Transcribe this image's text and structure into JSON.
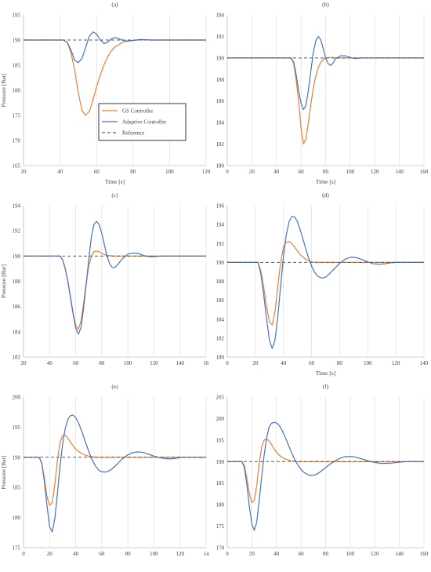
{
  "colors": {
    "gs": "#ED7D31",
    "adaptive": "#4472C4",
    "reference": "#595959",
    "grid": "#D9D9D9",
    "axis": "#BFBFBF"
  },
  "legend": {
    "gs": "GS Controller",
    "adaptive": "Adaptive Controller",
    "reference": "Reference"
  },
  "chart_data": [
    {
      "type": "line",
      "title": "(a)",
      "xlabel": "Time [s]",
      "ylabel": "Pressure [Bar]",
      "xlim": [
        20,
        120
      ],
      "ylim": [
        165,
        195
      ],
      "xticks": [
        "20",
        "40",
        "60",
        "80",
        "100",
        "120"
      ],
      "yticks": [
        "165",
        "170",
        "175",
        "180",
        "185",
        "190",
        "195"
      ],
      "grid": "vertical",
      "legend": "inside-lower-center",
      "series": [
        {
          "name": "GS Controller",
          "key": "gs",
          "x": [
            20,
            42,
            44,
            46,
            48,
            50,
            52,
            54,
            56,
            58,
            60,
            62,
            64,
            66,
            68,
            70,
            74,
            78,
            82,
            86,
            90,
            100,
            110,
            120
          ],
          "y": [
            190,
            190,
            189.5,
            187.5,
            184,
            179.5,
            176,
            175,
            175.8,
            178,
            180.7,
            183,
            185,
            186.6,
            187.8,
            188.6,
            189.5,
            189.85,
            190,
            190.05,
            190,
            190,
            190,
            190
          ]
        },
        {
          "name": "Adaptive Controller",
          "key": "adaptive",
          "x": [
            20,
            42,
            44,
            46,
            48,
            50,
            52,
            54,
            56,
            58,
            60,
            62,
            64,
            66,
            68,
            70,
            72,
            74,
            76,
            80,
            84,
            90,
            100,
            120
          ],
          "y": [
            190,
            190,
            189.5,
            188,
            186,
            185.5,
            186.3,
            188.5,
            190.7,
            191.6,
            191.2,
            190,
            189.3,
            189.5,
            190.2,
            190.5,
            190.3,
            190,
            189.8,
            189.9,
            190.1,
            190,
            190,
            190
          ]
        },
        {
          "name": "Reference",
          "key": "reference",
          "x": [
            20,
            120
          ],
          "y": [
            190,
            190
          ]
        }
      ]
    },
    {
      "type": "line",
      "title": "(b)",
      "xlabel": "Time [s]",
      "ylabel": "",
      "xlim": [
        0,
        160
      ],
      "ylim": [
        180,
        194
      ],
      "xticks": [
        "0",
        "20",
        "40",
        "60",
        "80",
        "100",
        "120",
        "140",
        "160"
      ],
      "yticks": [
        "180",
        "182",
        "184",
        "186",
        "188",
        "190",
        "192",
        "194"
      ],
      "grid": "vertical",
      "legend": "none",
      "series": [
        {
          "name": "GS Controller",
          "key": "gs",
          "x": [
            0,
            52,
            54,
            56,
            58,
            60,
            62,
            64,
            66,
            68,
            70,
            72,
            74,
            76,
            78,
            80,
            84,
            90,
            100,
            110,
            160
          ],
          "y": [
            190,
            190,
            189.5,
            188,
            186,
            183.5,
            182,
            182.5,
            184,
            185.7,
            187.2,
            188.3,
            189.1,
            189.6,
            189.85,
            190,
            190.05,
            190,
            190,
            190,
            190
          ]
        },
        {
          "name": "Adaptive Controller",
          "key": "adaptive",
          "x": [
            0,
            52,
            54,
            56,
            58,
            60,
            62,
            64,
            66,
            68,
            70,
            72,
            74,
            76,
            78,
            80,
            82,
            84,
            86,
            88,
            92,
            96,
            100,
            104,
            110,
            120,
            160
          ],
          "y": [
            190,
            190,
            189.6,
            188.5,
            187,
            185.8,
            185.2,
            185.6,
            187,
            188.8,
            190.5,
            191.6,
            192,
            191.7,
            190.9,
            190,
            189.5,
            189.3,
            189.5,
            189.9,
            190.2,
            190.2,
            190.05,
            189.95,
            190,
            190,
            190
          ]
        },
        {
          "name": "Reference",
          "key": "reference",
          "x": [
            0,
            160
          ],
          "y": [
            190,
            190
          ]
        }
      ]
    },
    {
      "type": "line",
      "title": "(c)",
      "xlabel": "",
      "ylabel": "Pressure [Bar]",
      "xlim": [
        20,
        160
      ],
      "ylim": [
        182,
        194
      ],
      "xticks": [
        "20",
        "40",
        "60",
        "80",
        "100",
        "120",
        "140",
        "16"
      ],
      "yticks": [
        "182",
        "184",
        "186",
        "188",
        "190",
        "192",
        "194"
      ],
      "grid": "vertical",
      "legend": "none",
      "series": [
        {
          "name": "GS Controller",
          "key": "gs",
          "x": [
            20,
            48,
            50,
            52,
            54,
            56,
            58,
            60,
            62,
            64,
            66,
            68,
            70,
            72,
            74,
            76,
            78,
            80,
            84,
            90,
            100,
            160
          ],
          "y": [
            190,
            190,
            189.7,
            189,
            188,
            186.8,
            185.5,
            184.5,
            184.2,
            184.8,
            186.2,
            187.8,
            189.2,
            190,
            190.35,
            190.4,
            190.35,
            190.2,
            190.05,
            190,
            190,
            190
          ]
        },
        {
          "name": "Adaptive Controller",
          "key": "adaptive",
          "x": [
            20,
            48,
            50,
            52,
            54,
            56,
            58,
            60,
            62,
            64,
            66,
            68,
            70,
            72,
            74,
            76,
            78,
            80,
            82,
            84,
            86,
            88,
            90,
            92,
            96,
            100,
            104,
            108,
            112,
            116,
            120,
            125,
            130,
            140,
            160
          ],
          "y": [
            190,
            190,
            189.7,
            189,
            188,
            186.7,
            185.4,
            184.3,
            183.8,
            184.3,
            185.8,
            187.7,
            189.7,
            191.5,
            192.5,
            192.75,
            192.5,
            191.8,
            190.9,
            190,
            189.4,
            189.1,
            189.1,
            189.3,
            189.8,
            190.15,
            190.25,
            190.2,
            190.05,
            189.95,
            189.95,
            190,
            190,
            190,
            190
          ]
        },
        {
          "name": "Reference",
          "key": "reference",
          "x": [
            20,
            160
          ],
          "y": [
            190,
            190
          ]
        }
      ]
    },
    {
      "type": "line",
      "title": "(d)",
      "xlabel": "Time [s]",
      "ylabel": "",
      "xlim": [
        0,
        140
      ],
      "ylim": [
        180,
        196
      ],
      "xticks": [
        "0",
        "20",
        "40",
        "60",
        "80",
        "100",
        "120",
        "140"
      ],
      "yticks": [
        "180",
        "182",
        "184",
        "186",
        "188",
        "190",
        "192",
        "194",
        "196"
      ],
      "grid": "vertical",
      "legend": "none",
      "series": [
        {
          "name": "GS Controller",
          "key": "gs",
          "x": [
            0,
            22,
            24,
            26,
            28,
            30,
            32,
            34,
            36,
            38,
            40,
            42,
            44,
            46,
            48,
            50,
            52,
            56,
            60,
            64,
            70,
            140
          ],
          "y": [
            190,
            190,
            189,
            187.3,
            185.3,
            183.7,
            183.4,
            184.8,
            187.5,
            190,
            191.6,
            192.15,
            192.2,
            192,
            191.6,
            191.2,
            190.8,
            190.3,
            190.05,
            190,
            190,
            190
          ]
        },
        {
          "name": "Adaptive Controller",
          "key": "adaptive",
          "x": [
            0,
            22,
            24,
            26,
            28,
            30,
            32,
            34,
            36,
            38,
            40,
            42,
            44,
            46,
            48,
            50,
            52,
            54,
            56,
            58,
            60,
            62,
            64,
            66,
            68,
            70,
            72,
            76,
            80,
            84,
            88,
            92,
            96,
            100,
            104,
            108,
            112,
            116,
            120,
            124,
            140
          ],
          "y": [
            190,
            190,
            188.7,
            186.5,
            184,
            181.8,
            180.9,
            181.8,
            184.3,
            187.5,
            190.6,
            192.9,
            194.3,
            194.85,
            194.8,
            194.3,
            193.4,
            192.4,
            191.4,
            190.4,
            189.6,
            189,
            188.6,
            188.4,
            188.35,
            188.45,
            188.7,
            189.3,
            189.9,
            190.35,
            190.55,
            190.5,
            190.3,
            190.05,
            189.85,
            189.8,
            189.85,
            189.95,
            190,
            190,
            190
          ]
        },
        {
          "name": "Reference",
          "key": "reference",
          "x": [
            0,
            140
          ],
          "y": [
            190,
            190
          ]
        }
      ]
    },
    {
      "type": "line",
      "title": "(e)",
      "xlabel": "",
      "ylabel": "Pressure [Bar]",
      "xlim": [
        0,
        140
      ],
      "ylim": [
        175,
        200
      ],
      "xticks": [
        "0",
        "20",
        "40",
        "60",
        "80",
        "100",
        "120",
        "14"
      ],
      "yticks": [
        "175",
        "180",
        "185",
        "190",
        "195",
        "200"
      ],
      "grid": "vertical",
      "legend": "none",
      "series": [
        {
          "name": "GS Controller",
          "key": "gs",
          "x": [
            0,
            12,
            14,
            16,
            18,
            20,
            22,
            24,
            26,
            28,
            30,
            32,
            34,
            36,
            38,
            40,
            42,
            44,
            48,
            52,
            56,
            60,
            140
          ],
          "y": [
            190,
            190,
            189,
            186.5,
            183.5,
            182,
            182.5,
            185.5,
            189.5,
            192.5,
            193.6,
            193.7,
            193.2,
            192.5,
            191.9,
            191.4,
            191,
            190.7,
            190.3,
            190.1,
            190,
            190,
            190
          ]
        },
        {
          "name": "Adaptive Controller",
          "key": "adaptive",
          "x": [
            0,
            12,
            14,
            16,
            18,
            20,
            22,
            24,
            26,
            28,
            30,
            32,
            34,
            36,
            38,
            40,
            42,
            44,
            46,
            48,
            50,
            52,
            54,
            56,
            58,
            60,
            62,
            64,
            66,
            68,
            72,
            76,
            80,
            84,
            88,
            92,
            96,
            100,
            104,
            108,
            112,
            116,
            120,
            124,
            128,
            140
          ],
          "y": [
            190,
            190,
            189,
            186,
            182,
            178.5,
            177.6,
            179.8,
            184,
            188.5,
            192.2,
            194.8,
            196.3,
            196.9,
            197,
            196.6,
            195.8,
            194.7,
            193.5,
            192.2,
            191,
            189.9,
            189,
            188.3,
            187.8,
            187.6,
            187.55,
            187.6,
            187.8,
            188.1,
            188.9,
            189.8,
            190.4,
            190.8,
            190.9,
            190.8,
            190.5,
            190.2,
            189.95,
            189.8,
            189.75,
            189.8,
            189.95,
            190,
            190,
            190
          ]
        },
        {
          "name": "Reference",
          "key": "reference",
          "x": [
            0,
            140
          ],
          "y": [
            190,
            190
          ]
        }
      ]
    },
    {
      "type": "line",
      "title": "(f)",
      "xlabel": "",
      "ylabel": "",
      "xlim": [
        0,
        160
      ],
      "ylim": [
        170,
        205
      ],
      "xticks": [
        "0",
        "20",
        "40",
        "60",
        "80",
        "100",
        "120",
        "140",
        "160"
      ],
      "yticks": [
        "170",
        "175",
        "180",
        "185",
        "190",
        "195",
        "200",
        "205"
      ],
      "grid": "vertical",
      "legend": "none",
      "series": [
        {
          "name": "GS Controller",
          "key": "gs",
          "x": [
            0,
            12,
            14,
            16,
            18,
            20,
            22,
            24,
            26,
            28,
            30,
            32,
            34,
            36,
            38,
            40,
            42,
            44,
            48,
            52,
            56,
            60,
            160
          ],
          "y": [
            190,
            190,
            189,
            186,
            182.5,
            180.5,
            181,
            184.5,
            189.5,
            193.5,
            195,
            195.3,
            194.8,
            194,
            193,
            192.2,
            191.6,
            191.1,
            190.5,
            190.2,
            190.05,
            190,
            190
          ]
        },
        {
          "name": "Adaptive Controller",
          "key": "adaptive",
          "x": [
            0,
            12,
            14,
            16,
            18,
            20,
            22,
            24,
            26,
            28,
            30,
            32,
            34,
            36,
            38,
            40,
            42,
            44,
            46,
            48,
            50,
            52,
            54,
            56,
            58,
            60,
            62,
            64,
            66,
            68,
            70,
            72,
            74,
            76,
            80,
            84,
            88,
            92,
            96,
            100,
            104,
            108,
            112,
            116,
            120,
            125,
            130,
            135,
            140,
            145,
            150,
            160
          ],
          "y": [
            190,
            190,
            188.5,
            184.5,
            179.5,
            175.5,
            174,
            176,
            181,
            186.5,
            191.5,
            195.5,
            198,
            198.9,
            199.1,
            199,
            198.5,
            197.6,
            196.4,
            195.1,
            193.7,
            192.3,
            191,
            189.9,
            189,
            188.2,
            187.6,
            187.2,
            186.9,
            186.8,
            186.85,
            187,
            187.3,
            187.7,
            188.6,
            189.5,
            190.2,
            190.8,
            191.15,
            191.2,
            191.05,
            190.75,
            190.4,
            190.05,
            189.8,
            189.6,
            189.6,
            189.7,
            189.85,
            190,
            190,
            190
          ]
        },
        {
          "name": "Reference",
          "key": "reference",
          "x": [
            0,
            160
          ],
          "y": [
            190,
            190
          ]
        }
      ]
    }
  ]
}
